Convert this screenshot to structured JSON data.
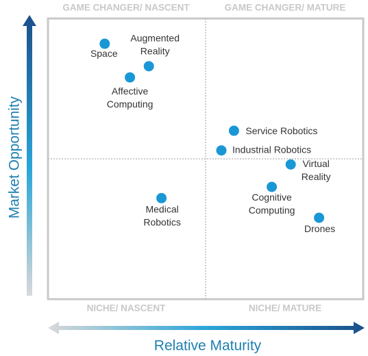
{
  "chart_data": {
    "type": "scatter",
    "quadrant_labels": [
      "GAME CHANGER/ NASCENT",
      "GAME CHANGER/ MATURE",
      "NICHE/ NASCENT",
      "NICHE/ MATURE"
    ],
    "x_label": "Relative Maturity",
    "y_label": "Market Opportunity",
    "xlim": [
      0,
      100
    ],
    "ylim": [
      0,
      100
    ],
    "x_split": 50,
    "y_split": 50,
    "color": "#1a97d5",
    "labels": [
      [
        "Space"
      ],
      [
        "Augmented",
        "Reality"
      ],
      [
        "Affective",
        "Computing"
      ],
      [
        "Service Robotics"
      ],
      [
        "Industrial Robotics"
      ],
      [
        "Virtual",
        "Reality"
      ],
      [
        "Cognitive",
        "Computing"
      ],
      [
        "Medical",
        "Robotics"
      ],
      [
        "Drones"
      ]
    ],
    "x": [
      18,
      32,
      26,
      59,
      55,
      77,
      71,
      36,
      86
    ],
    "values": [
      91,
      83,
      79,
      60,
      53,
      48,
      40,
      36,
      29
    ]
  }
}
